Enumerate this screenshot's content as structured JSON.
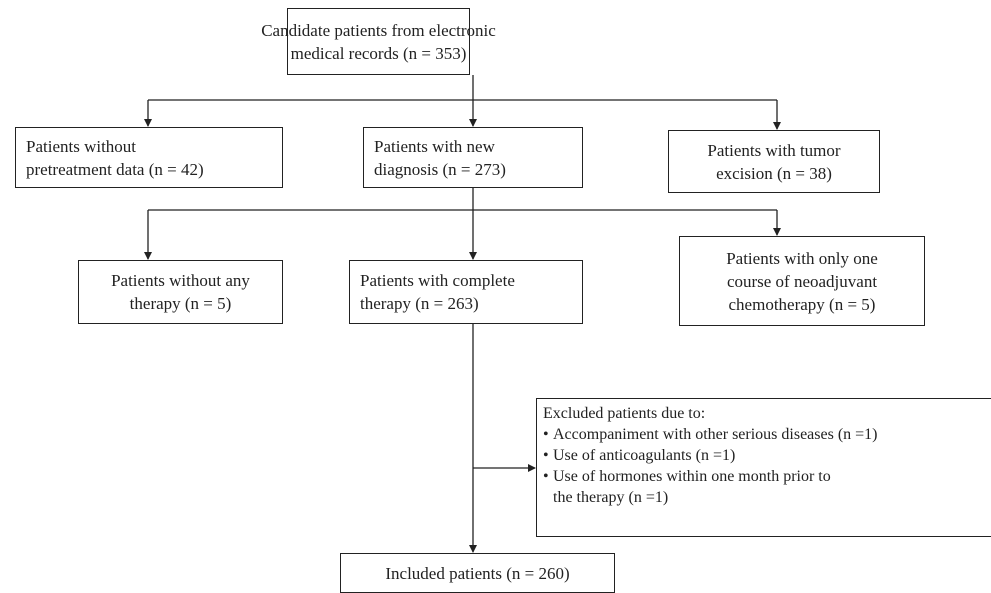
{
  "nodes": [
    {
      "lines": [
        "Candidate patients from electronic",
        "medical records (n = 353)"
      ]
    },
    {
      "lines": [
        "Patients without",
        "pretreatment data (n = 42)"
      ]
    },
    {
      "lines": [
        "Patients with new",
        "diagnosis (n = 273)"
      ]
    },
    {
      "lines": [
        "Patients with tumor",
        "excision (n = 38)"
      ]
    },
    {
      "lines": [
        "Patients without any",
        "therapy (n = 5)"
      ]
    },
    {
      "lines": [
        "Patients with complete",
        "therapy (n = 263)"
      ]
    },
    {
      "lines": [
        "Patients with only one",
        "course of neoadjuvant",
        "chemotherapy (n = 5)"
      ]
    },
    {
      "lines": [
        "Included patients (n = 260)"
      ]
    }
  ],
  "exclusion": {
    "heading": "Excluded patients due to:",
    "items": [
      {
        "lines": [
          "Accompaniment with other serious diseases (n =1)"
        ]
      },
      {
        "lines": [
          "Use of anticoagulants (n =1)"
        ]
      },
      {
        "lines": [
          "Use of hormones within one month prior to",
          "the therapy (n =1)"
        ]
      }
    ]
  }
}
